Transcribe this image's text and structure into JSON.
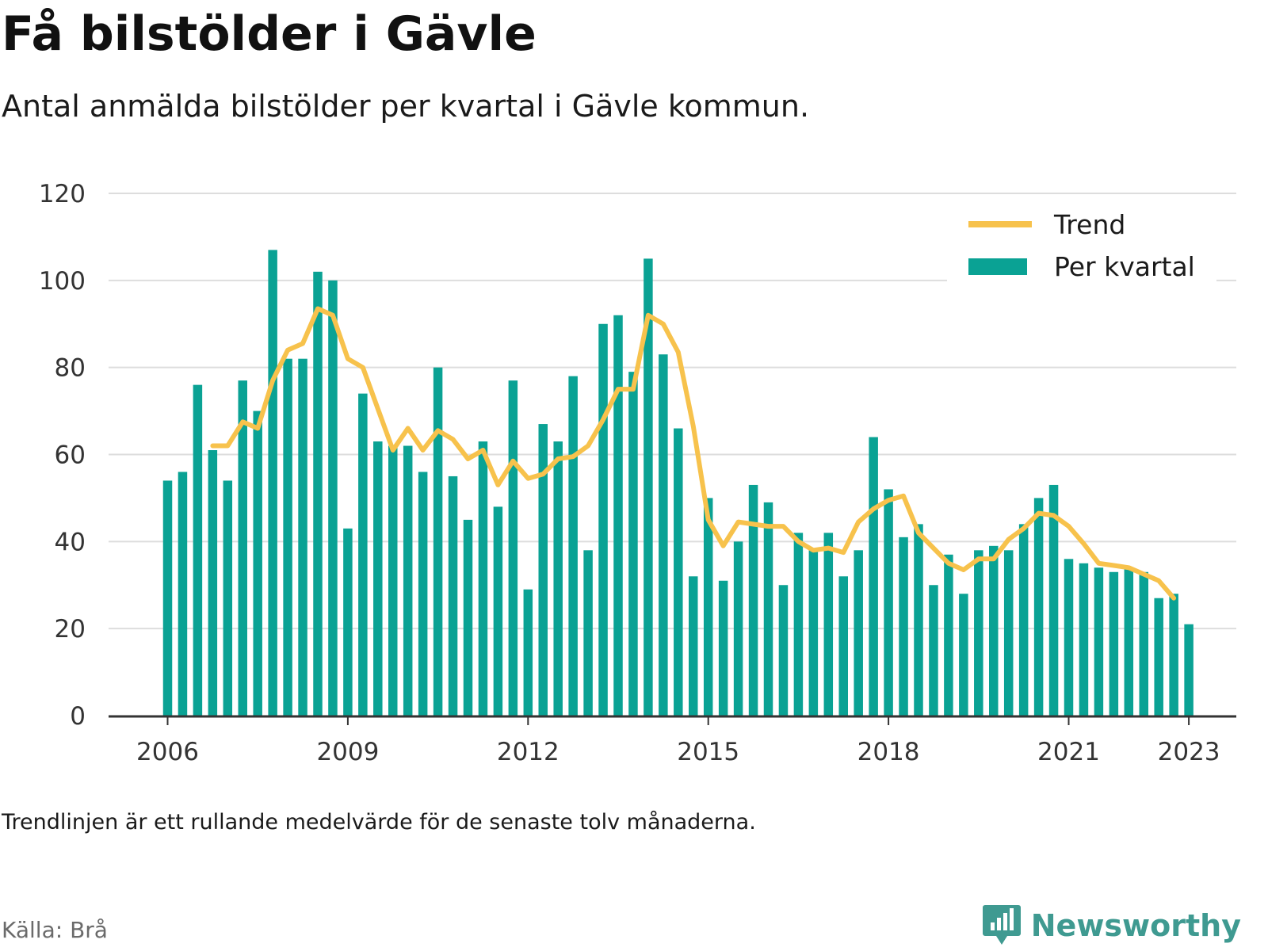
{
  "header": {
    "title": "Få bilstölder i Gävle",
    "subtitle": "Antal anmälda bilstölder per kvartal i Gävle kommun."
  },
  "footer": {
    "note": "Trendlinjen är ett rullande medelvärde för de senaste tolv månaderna.",
    "source": "Källa: Brå",
    "brand": "Newsworthy"
  },
  "colors": {
    "bars": "#0aa294",
    "trend": "#f7c24c",
    "grid": "#dddddd",
    "axis": "#333333",
    "brand": "#3f9a91"
  },
  "icons": {
    "brand_logo": "bar-chart-badge-icon"
  },
  "chart_data": {
    "type": "bar",
    "title": "Få bilstölder i Gävle",
    "subtitle": "Antal anmälda bilstölder per kvartal i Gävle kommun.",
    "xlabel": "",
    "ylabel": "",
    "ylim": [
      0,
      120
    ],
    "yticks": [
      0,
      20,
      40,
      60,
      80,
      100,
      120
    ],
    "xticks": [
      {
        "label": "2006",
        "index": 0
      },
      {
        "label": "2009",
        "index": 12
      },
      {
        "label": "2012",
        "index": 24
      },
      {
        "label": "2015",
        "index": 36
      },
      {
        "label": "2018",
        "index": 48
      },
      {
        "label": "2021",
        "index": 60
      },
      {
        "label": "2023",
        "index": 68
      }
    ],
    "grid": true,
    "legend": "top-right",
    "series": [
      {
        "name": "Per kvartal",
        "type": "bar",
        "values": [
          54,
          56,
          76,
          61,
          54,
          77,
          70,
          107,
          82,
          82,
          102,
          100,
          43,
          74,
          63,
          62,
          62,
          56,
          80,
          55,
          45,
          63,
          48,
          77,
          29,
          67,
          63,
          78,
          38,
          90,
          92,
          79,
          105,
          83,
          66,
          32,
          50,
          31,
          40,
          53,
          49,
          30,
          42,
          38,
          42,
          32,
          38,
          64,
          52,
          41,
          44,
          30,
          37,
          28,
          38,
          39,
          38,
          44,
          50,
          53,
          36,
          35,
          34,
          33,
          34,
          33,
          27,
          28,
          21
        ]
      },
      {
        "name": "Trend",
        "type": "line",
        "start_index": 3,
        "values": [
          62,
          62,
          67.5,
          66,
          77,
          84,
          85.5,
          93.5,
          92,
          82,
          80,
          70.5,
          61,
          66,
          61,
          65.5,
          63.5,
          59,
          61,
          53,
          58.5,
          54.5,
          55.5,
          59,
          59.5,
          62,
          68,
          75,
          75,
          92,
          90,
          83.5,
          66.5,
          45,
          39,
          44.5,
          44,
          43.5,
          43.5,
          40,
          38,
          38.5,
          37.5,
          44.5,
          47.5,
          49.5,
          50.5,
          42,
          38.5,
          35,
          33.5,
          36,
          36,
          40.5,
          43,
          46.5,
          46,
          43.5,
          39.5,
          35,
          34.5,
          34,
          32.5,
          31,
          27
        ]
      }
    ]
  }
}
